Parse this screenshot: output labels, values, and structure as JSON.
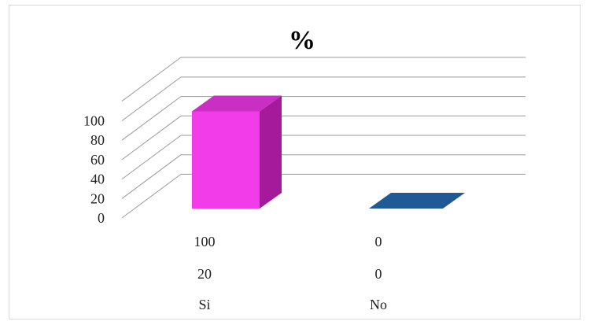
{
  "chart_data": {
    "type": "bar",
    "title": "%",
    "categories": [
      "Si",
      "No"
    ],
    "series": [
      {
        "values": [
          100,
          0
        ],
        "color": "#f23cea",
        "side_color": "#a51a9a",
        "top_color": "#c92fc2"
      },
      {
        "values": [
          20,
          0
        ]
      }
    ],
    "bar_series_index": 0,
    "zero_bar_color": "#1f5a96",
    "ylim": [
      0,
      100
    ],
    "yticks": [
      0,
      20,
      40,
      60,
      80,
      100
    ],
    "grid": true,
    "gridline_color": "#9a9a9a",
    "legend": "none",
    "data_table_rows": [
      [
        "100",
        "0"
      ],
      [
        "20",
        "0"
      ]
    ],
    "xlabel": "",
    "ylabel": ""
  }
}
